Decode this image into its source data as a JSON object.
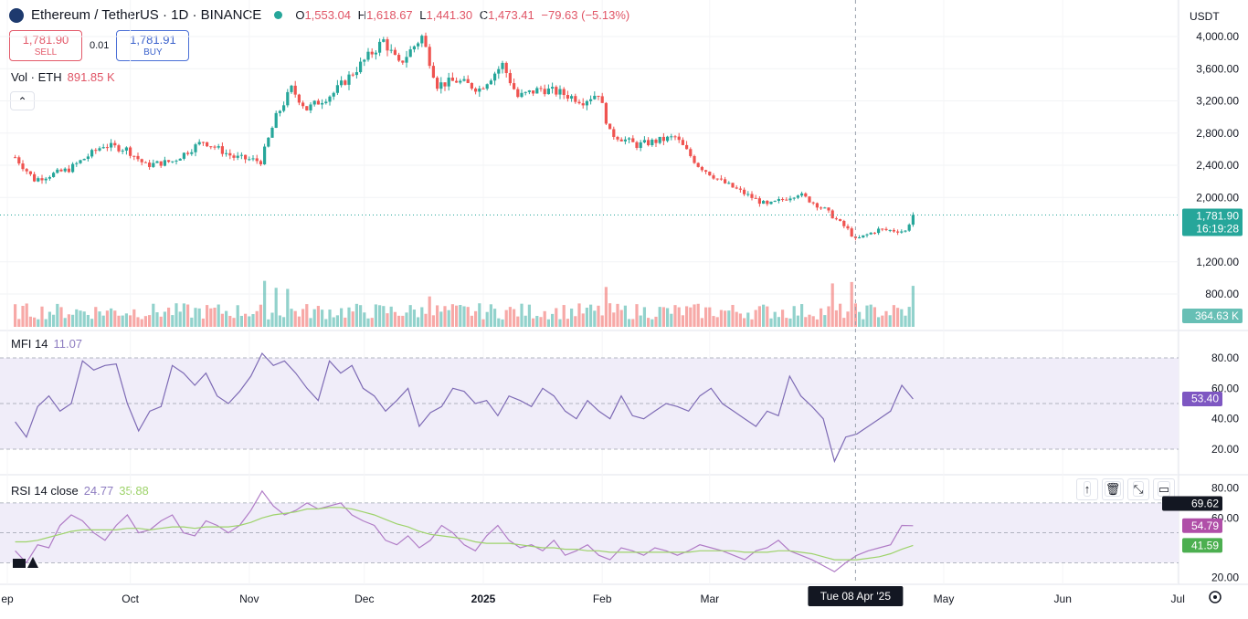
{
  "header": {
    "symbol": "Ethereum / TetherUS · 1D · BINANCE",
    "o_label": "O",
    "o_value": "1,553.04",
    "h_label": "H",
    "h_value": "1,618.67",
    "l_label": "L",
    "l_value": "1,441.30",
    "c_label": "C",
    "c_value": "1,473.41",
    "change": "−79.63 (−5.13%)"
  },
  "trade": {
    "sell_price": "1,781.90",
    "sell_label": "SELL",
    "spread": "0.01",
    "buy_price": "1,781.91",
    "buy_label": "BUY"
  },
  "volume_legend": {
    "label": "Vol · ETH",
    "value": "891.85 K"
  },
  "mfi_legend": {
    "label": "MFI 14",
    "value": "11.07"
  },
  "rsi_legend": {
    "label": "RSI 14 close",
    "rsi_value": "24.77",
    "ma_value": "35.88"
  },
  "currency": "USDT",
  "colors": {
    "up": "#26a69a",
    "down": "#ef5350",
    "mfi": "#7e6bb5",
    "rsi": "#b07cc6",
    "rsi_ma": "#9ed36b",
    "band": "#f0edf9"
  },
  "toolbar_icons": [
    "arrow-up-icon",
    "trash-icon",
    "collapse-icon",
    "maximize-icon"
  ],
  "crosshair_date": "Tue 08 Apr '25",
  "chart_data": [
    {
      "type": "candlestick",
      "title": "",
      "ylabel": "",
      "y_ticks": [
        "4,000.00",
        "3,600.00",
        "3,200.00",
        "2,800.00",
        "2,400.00",
        "2,000.00",
        "1,200.00",
        "800.00"
      ],
      "ylim": [
        400,
        4100
      ],
      "last_price_label": "1,781.90",
      "countdown_label": "16:19:28",
      "last_price": 1781.9,
      "x_labels": [
        "ep",
        "Oct",
        "Nov",
        "Dec",
        "2025",
        "Feb",
        "Mar",
        "May",
        "Jun",
        "Jul"
      ],
      "close_anchors": [
        [
          "2024-09-01",
          2500
        ],
        [
          "2024-09-06",
          2220
        ],
        [
          "2024-09-15",
          2350
        ],
        [
          "2024-09-24",
          2650
        ],
        [
          "2024-09-30",
          2600
        ],
        [
          "2024-10-05",
          2400
        ],
        [
          "2024-10-12",
          2450
        ],
        [
          "2024-10-20",
          2700
        ],
        [
          "2024-10-28",
          2500
        ],
        [
          "2024-11-04",
          2450
        ],
        [
          "2024-11-08",
          3000
        ],
        [
          "2024-11-12",
          3350
        ],
        [
          "2024-11-16",
          3100
        ],
        [
          "2024-11-23",
          3300
        ],
        [
          "2024-11-30",
          3650
        ],
        [
          "2024-12-06",
          3950
        ],
        [
          "2024-12-10",
          3650
        ],
        [
          "2024-12-16",
          4000
        ],
        [
          "2024-12-20",
          3400
        ],
        [
          "2024-12-25",
          3450
        ],
        [
          "2024-12-31",
          3350
        ],
        [
          "2025-01-06",
          3650
        ],
        [
          "2025-01-10",
          3250
        ],
        [
          "2025-01-16",
          3350
        ],
        [
          "2025-01-21",
          3300
        ],
        [
          "2025-01-27",
          3200
        ],
        [
          "2025-01-31",
          3300
        ],
        [
          "2025-02-03",
          2800
        ],
        [
          "2025-02-10",
          2650
        ],
        [
          "2025-02-20",
          2750
        ],
        [
          "2025-02-26",
          2400
        ],
        [
          "2025-03-04",
          2200
        ],
        [
          "2025-03-10",
          2050
        ],
        [
          "2025-03-16",
          1900
        ],
        [
          "2025-03-24",
          2050
        ],
        [
          "2025-03-31",
          1850
        ],
        [
          "2025-04-06",
          1600
        ],
        [
          "2025-04-08",
          1473
        ],
        [
          "2025-04-14",
          1600
        ],
        [
          "2025-04-21",
          1580
        ],
        [
          "2025-04-23",
          1782
        ]
      ]
    },
    {
      "type": "bar",
      "title": "Volume",
      "last_value_label": "364.63 K"
    },
    {
      "type": "line",
      "title": "MFI 14",
      "y_ticks": [
        "80.00",
        "60.00",
        "40.00",
        "20.00"
      ],
      "ylim": [
        8,
        92
      ],
      "bands": [
        80,
        50,
        20
      ],
      "last_value_label": "53.40",
      "series": [
        {
          "values": [
            38,
            28,
            48,
            55,
            45,
            50,
            78,
            72,
            75,
            76,
            50,
            32,
            45,
            48,
            75,
            70,
            62,
            70,
            55,
            50,
            58,
            68,
            83,
            75,
            78,
            70,
            60,
            52,
            78,
            70,
            75,
            60,
            55,
            45,
            52,
            60,
            35,
            44,
            48,
            60,
            58,
            50,
            52,
            42,
            55,
            52,
            48,
            60,
            55,
            45,
            40,
            52,
            45,
            40,
            55,
            42,
            40,
            45,
            50,
            48,
            45,
            55,
            60,
            50,
            45,
            40,
            35,
            45,
            42,
            68,
            55,
            48,
            40,
            12,
            28,
            30,
            35,
            40,
            45,
            62,
            53
          ]
        }
      ]
    },
    {
      "type": "line",
      "title": "RSI 14 close",
      "y_ticks": [
        "80.00",
        "60.00",
        "20.00"
      ],
      "ylim": [
        18,
        84
      ],
      "bands": [
        70,
        50,
        30
      ],
      "value_labels": [
        "69.62",
        "54.79",
        "41.59"
      ],
      "series": [
        {
          "name": "RSI",
          "values": [
            38,
            30,
            42,
            40,
            55,
            62,
            58,
            50,
            45,
            55,
            62,
            50,
            52,
            58,
            62,
            50,
            48,
            58,
            55,
            50,
            55,
            65,
            78,
            68,
            62,
            65,
            70,
            66,
            68,
            70,
            62,
            58,
            55,
            45,
            42,
            48,
            40,
            45,
            55,
            50,
            42,
            38,
            48,
            55,
            45,
            40,
            42,
            38,
            45,
            35,
            38,
            42,
            35,
            32,
            40,
            38,
            35,
            40,
            38,
            35,
            38,
            42,
            40,
            38,
            35,
            32,
            38,
            40,
            45,
            38,
            35,
            32,
            28,
            24,
            30,
            35,
            38,
            40,
            42,
            55,
            54.79
          ]
        },
        {
          "name": "RSI MA",
          "values": [
            44,
            44,
            45,
            47,
            49,
            51,
            52,
            52,
            52,
            52,
            53,
            53,
            52,
            53,
            54,
            54,
            53,
            54,
            54,
            54,
            55,
            57,
            60,
            62,
            63,
            64,
            66,
            66,
            67,
            67,
            66,
            64,
            62,
            59,
            56,
            54,
            51,
            49,
            48,
            47,
            46,
            44,
            43,
            43,
            43,
            42,
            41,
            40,
            40,
            39,
            39,
            38,
            38,
            37,
            37,
            37,
            37,
            37,
            37,
            37,
            37,
            38,
            38,
            38,
            38,
            37,
            37,
            37,
            38,
            38,
            37,
            36,
            34,
            32,
            32,
            32,
            33,
            34,
            36,
            39,
            41.59
          ]
        }
      ]
    }
  ]
}
